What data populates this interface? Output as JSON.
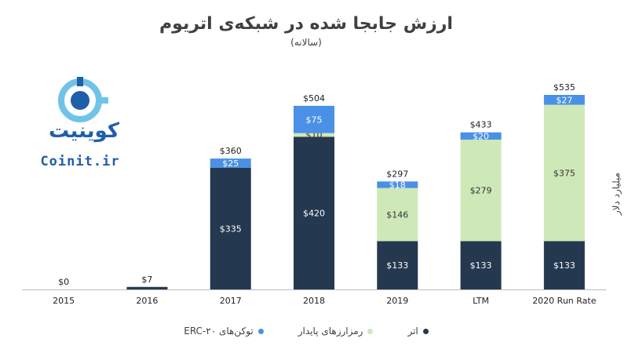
{
  "chart_data": {
    "type": "bar",
    "stacked": true,
    "title": "ارزش جابجا شده در شبکه‌ی اتریوم",
    "subtitle": "(سالانه)",
    "ylabel": "میلیارد دلار",
    "categories": [
      "2015",
      "2016",
      "2017",
      "2018",
      "2019",
      "LTM",
      "2020 Run Rate"
    ],
    "totals": [
      "$0",
      "$7",
      "$360",
      "$504",
      "$297",
      "$433",
      "$535"
    ],
    "series": [
      {
        "name": "اتر",
        "color": "#243850",
        "values": [
          0,
          7,
          335,
          420,
          133,
          133,
          133
        ],
        "labels": [
          "",
          "",
          "$335",
          "$420",
          "$133",
          "$133",
          "$133"
        ]
      },
      {
        "name": "رمزارزهای پایدار",
        "color": "#cfe8b8",
        "values": [
          0,
          0,
          0,
          10,
          146,
          279,
          375
        ],
        "labels": [
          "",
          "",
          "",
          "$10",
          "$146",
          "$279",
          "$375"
        ]
      },
      {
        "name": "توکن‌های ERC-۲۰",
        "color": "#4a90e6",
        "values": [
          0,
          0,
          25,
          75,
          18,
          20,
          27
        ],
        "labels": [
          "",
          "",
          "$25",
          "$75",
          "$18",
          "$20",
          "$27"
        ]
      }
    ],
    "ylim": [
      0,
      535
    ],
    "grid": false,
    "legend_position": "bottom"
  },
  "logo": {
    "text_fa": "کوینیت",
    "text_en": "Coinit.ir",
    "color": "#1f5fa8",
    "accent": "#6fc3e8"
  }
}
